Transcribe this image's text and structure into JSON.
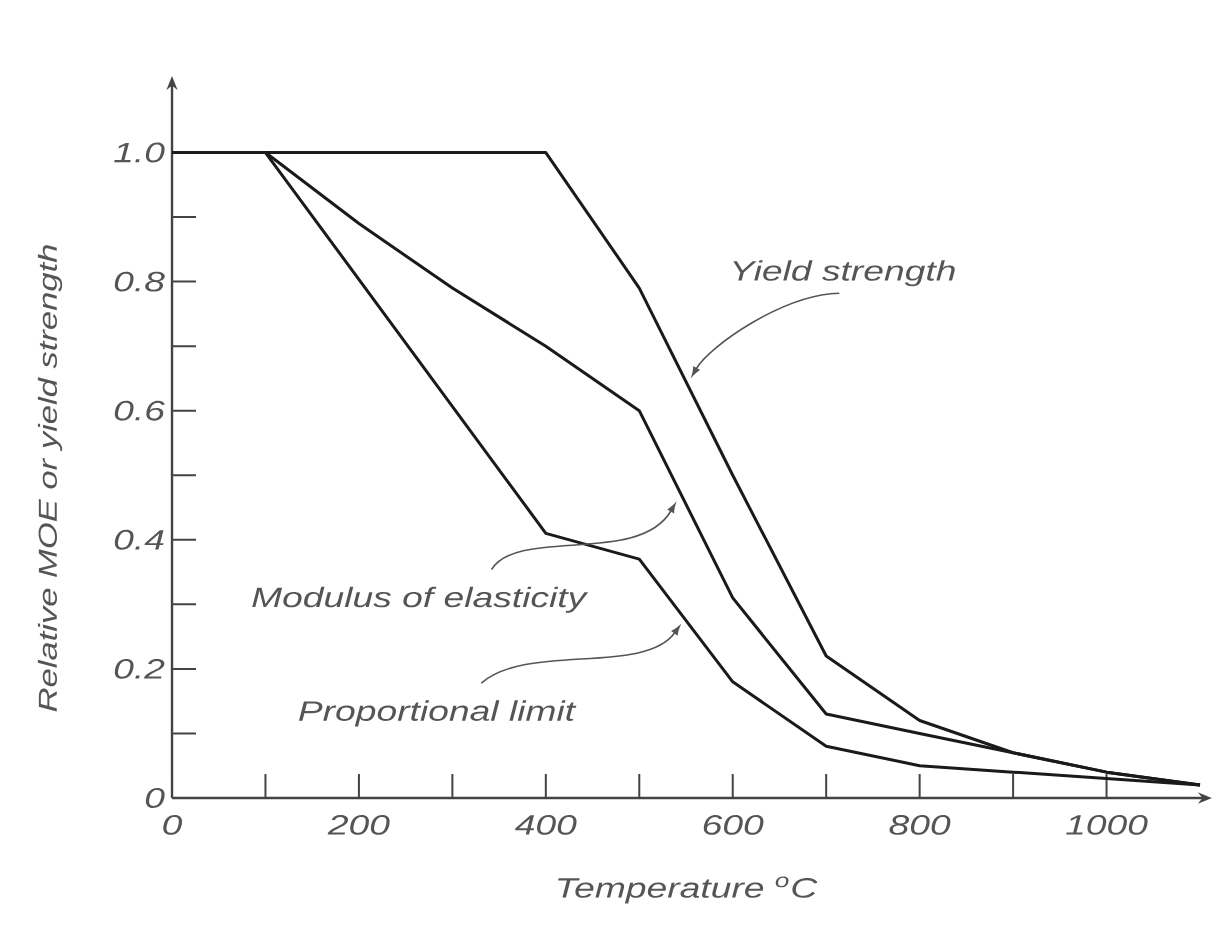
{
  "chart_data": {
    "type": "line",
    "xlabel": "Temperature $^{o}$C",
    "ylabel": "Relative MOE or yield strength",
    "series": [
      {
        "color": "#1a1a1a",
        "x": [
          0,
          400,
          500,
          600,
          700,
          800,
          900,
          1000,
          1100
        ],
        "values": [
          1,
          1,
          0.79,
          0.5,
          0.22,
          0.12,
          0.07,
          0.04,
          0.02
        ]
      },
      {
        "color": "#1a1a1a",
        "x": [
          0,
          100,
          200,
          300,
          400,
          500,
          600,
          700,
          800,
          900,
          1000,
          1100
        ],
        "values": [
          1,
          1,
          0.89,
          0.79,
          0.7,
          0.6,
          0.31,
          0.13,
          0.1,
          0.07,
          0.04,
          0.02
        ]
      },
      {
        "color": "#1a1a1a",
        "x": [
          0,
          100,
          400,
          500,
          600,
          700,
          800,
          900,
          1000,
          1100
        ],
        "values": [
          1,
          1,
          0.41,
          0.37,
          0.18,
          0.08,
          0.05,
          0.04,
          0.03,
          0.02
        ]
      }
    ],
    "annotations": [
      {
        "text": "Yield strength",
        "x": 555,
        "y": 0.65
      },
      {
        "text": "Modulus of elasticity",
        "x": 540,
        "y": 0.46
      },
      {
        "text": "Proportional limit",
        "x": 545,
        "y": 0.27
      }
    ],
    "line_style": "solid",
    "xlim": [
      0,
      1100
    ],
    "ylim": [
      0,
      1.1
    ],
    "xticks": [
      0,
      {
        "value": 100,
        "label": null
      },
      200,
      {
        "value": 300,
        "label": null
      },
      400,
      {
        "value": 500,
        "label": null
      },
      600,
      {
        "value": 700,
        "label": null
      },
      800,
      {
        "value": 900,
        "label": null
      },
      1000
    ],
    "yticks": [
      0,
      {
        "value": 0.1,
        "label": null
      },
      0.2,
      {
        "value": 0.3,
        "label": null
      },
      0.4,
      {
        "value": 0.5,
        "label": null
      },
      0.6,
      {
        "value": 0.7,
        "label": null
      },
      0.8,
      {
        "value": 0.9,
        "label": null
      },
      {
        "value": 1,
        "label": "1.0"
      }
    ]
  }
}
